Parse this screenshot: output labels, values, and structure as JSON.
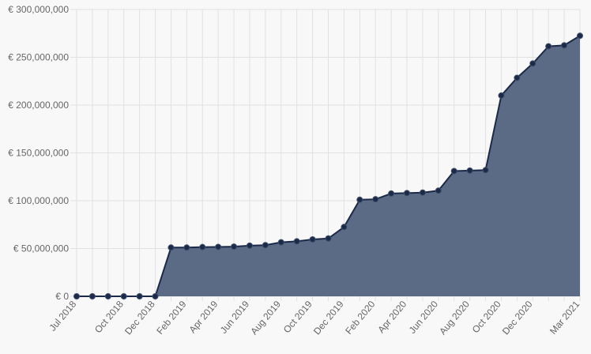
{
  "chart_data": {
    "type": "area",
    "x": [
      "Jul 2018",
      "Aug 2018",
      "Sep 2018",
      "Oct 2018",
      "Nov 2018",
      "Dec 2018",
      "Jan 2019",
      "Feb 2019",
      "Mar 2019",
      "Apr 2019",
      "May 2019",
      "Jun 2019",
      "Jul 2019",
      "Aug 2019",
      "Sep 2019",
      "Oct 2019",
      "Nov 2019",
      "Dec 2019",
      "Jan 2020",
      "Feb 2020",
      "Mar 2020",
      "Apr 2020",
      "May 2020",
      "Jun 2020",
      "Jul 2020",
      "Aug 2020",
      "Sep 2020",
      "Oct 2020",
      "Nov 2020",
      "Dec 2020",
      "Jan 2021",
      "Feb 2021",
      "Mar 2021"
    ],
    "series": [
      {
        "values": [
          0,
          0,
          0,
          0,
          0,
          0,
          51000000,
          51000000,
          51500000,
          51700000,
          52000000,
          53000000,
          53500000,
          56500000,
          57500000,
          59500000,
          60500000,
          72500000,
          101000000,
          101500000,
          107500000,
          108000000,
          108500000,
          110500000,
          131000000,
          131500000,
          132000000,
          210000000,
          228500000,
          243500000,
          261500000,
          262500000,
          272500000
        ]
      }
    ],
    "x_tick_labels": [
      "Jul 2018",
      "Oct 2018",
      "Dec 2018",
      "Feb 2019",
      "Apr 2019",
      "Jun 2019",
      "Aug 2019",
      "Oct 2019",
      "Dec 2019",
      "Feb 2020",
      "Apr 2020",
      "Jun 2020",
      "Aug 2020",
      "Oct 2020",
      "Dec 2020",
      "Mar 2021"
    ],
    "y_ticks": [
      "€ 0",
      "€ 50,000,000",
      "€ 100,000,000",
      "€ 150,000,000",
      "€ 200,000,000",
      "€ 250,000,000",
      "€ 300,000,000"
    ],
    "ylim": [
      0,
      300000000
    ],
    "grid": true,
    "colors": {
      "fill": "#5b6a85",
      "line": "#1a2a48",
      "point": "#1a2a48"
    }
  }
}
